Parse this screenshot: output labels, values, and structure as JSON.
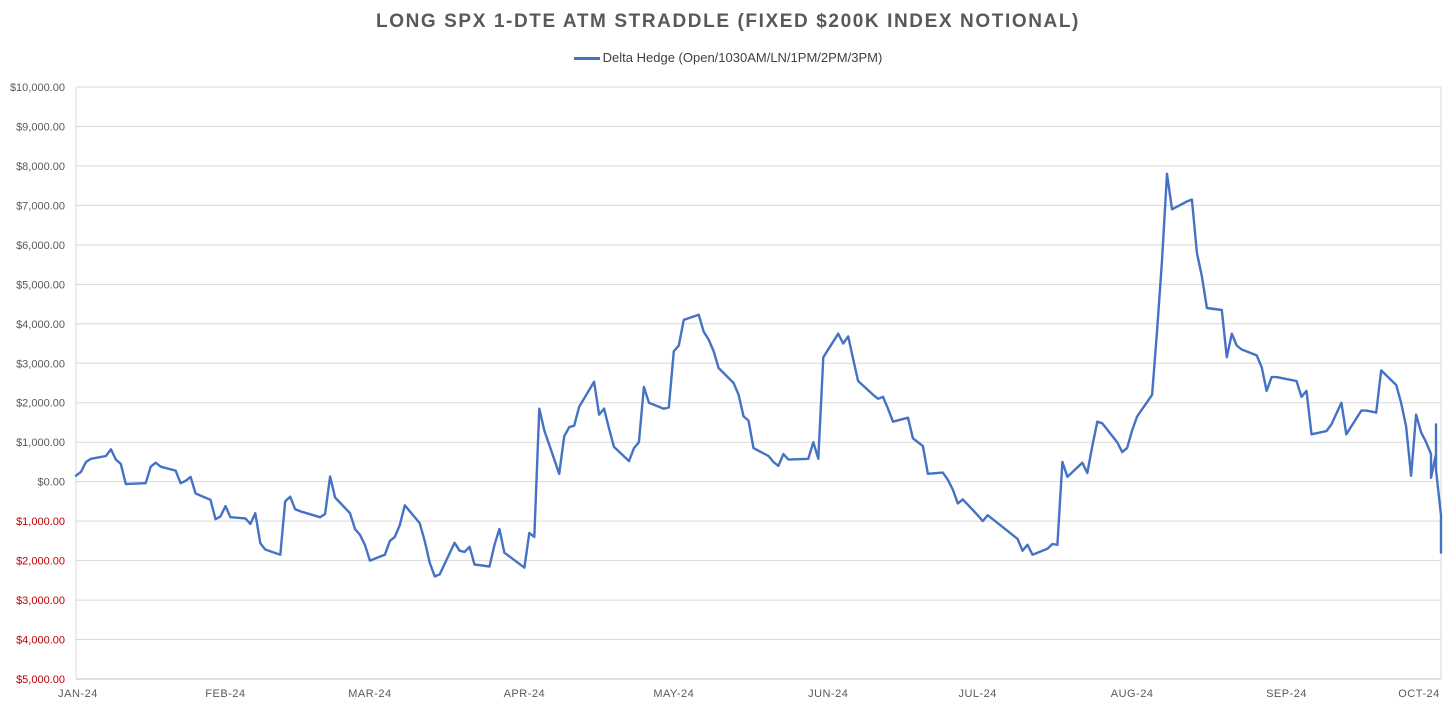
{
  "chart_data": {
    "type": "line",
    "title": "LONG SPX 1-DTE ATM STRADDLE (FIXED $200K INDEX NOTIONAL)",
    "legend_position": "top-center",
    "grid": true,
    "colors": {
      "series": "#4472C4",
      "positive_ticks": "#595959",
      "negative_ticks": "#C00000",
      "grid": "#D9D9D9"
    },
    "ylim": [
      -5000,
      10000
    ],
    "y_ticks": [
      {
        "value": 10000,
        "label": "$10,000.00"
      },
      {
        "value": 9000,
        "label": "$9,000.00"
      },
      {
        "value": 8000,
        "label": "$8,000.00"
      },
      {
        "value": 7000,
        "label": "$7,000.00"
      },
      {
        "value": 6000,
        "label": "$6,000.00"
      },
      {
        "value": 5000,
        "label": "$5,000.00"
      },
      {
        "value": 4000,
        "label": "$4,000.00"
      },
      {
        "value": 3000,
        "label": "$3,000.00"
      },
      {
        "value": 2000,
        "label": "$2,000.00"
      },
      {
        "value": 1000,
        "label": "$1,000.00"
      },
      {
        "value": 0,
        "label": "$0.00"
      },
      {
        "value": -1000,
        "label": "$1,000.00"
      },
      {
        "value": -2000,
        "label": "$2,000.00"
      },
      {
        "value": -3000,
        "label": "$3,000.00"
      },
      {
        "value": -4000,
        "label": "$4,000.00"
      },
      {
        "value": -5000,
        "label": "$5,000.00"
      }
    ],
    "xlim": [
      "2024-01-02",
      "2024-10-02"
    ],
    "x_ticks": [
      {
        "date": "2024-01-02",
        "label": "JAN-24"
      },
      {
        "date": "2024-02-01",
        "label": "FEB-24"
      },
      {
        "date": "2024-03-01",
        "label": "MAR-24"
      },
      {
        "date": "2024-04-01",
        "label": "APR-24"
      },
      {
        "date": "2024-05-01",
        "label": "MAY-24"
      },
      {
        "date": "2024-06-01",
        "label": "JUN-24"
      },
      {
        "date": "2024-07-01",
        "label": "JUL-24"
      },
      {
        "date": "2024-08-01",
        "label": "AUG-24"
      },
      {
        "date": "2024-09-01",
        "label": "SEP-24"
      },
      {
        "date": "2024-10-01",
        "label": "OCT-24"
      }
    ],
    "series": [
      {
        "name": "Delta Hedge (Open/1030AM/LN/1PM/2PM/3PM)",
        "points": [
          [
            "2024-01-02",
            150
          ],
          [
            "2024-01-03",
            250
          ],
          [
            "2024-01-04",
            500
          ],
          [
            "2024-01-05",
            580
          ],
          [
            "2024-01-08",
            650
          ],
          [
            "2024-01-09",
            820
          ],
          [
            "2024-01-10",
            560
          ],
          [
            "2024-01-11",
            450
          ],
          [
            "2024-01-12",
            -60
          ],
          [
            "2024-01-16",
            -40
          ],
          [
            "2024-01-17",
            380
          ],
          [
            "2024-01-18",
            480
          ],
          [
            "2024-01-19",
            380
          ],
          [
            "2024-01-22",
            280
          ],
          [
            "2024-01-23",
            -40
          ],
          [
            "2024-01-24",
            20
          ],
          [
            "2024-01-25",
            120
          ],
          [
            "2024-01-26",
            -300
          ],
          [
            "2024-01-29",
            -460
          ],
          [
            "2024-01-30",
            -950
          ],
          [
            "2024-01-31",
            -880
          ],
          [
            "2024-02-01",
            -620
          ],
          [
            "2024-02-02",
            -900
          ],
          [
            "2024-02-05",
            -930
          ],
          [
            "2024-02-06",
            -1070
          ],
          [
            "2024-02-07",
            -800
          ],
          [
            "2024-02-08",
            -1560
          ],
          [
            "2024-02-09",
            -1720
          ],
          [
            "2024-02-12",
            -1850
          ],
          [
            "2024-02-13",
            -500
          ],
          [
            "2024-02-14",
            -380
          ],
          [
            "2024-02-15",
            -700
          ],
          [
            "2024-02-16",
            -750
          ],
          [
            "2024-02-20",
            -900
          ],
          [
            "2024-02-21",
            -820
          ],
          [
            "2024-02-22",
            130
          ],
          [
            "2024-02-23",
            -400
          ],
          [
            "2024-02-26",
            -800
          ],
          [
            "2024-02-27",
            -1200
          ],
          [
            "2024-02-28",
            -1350
          ],
          [
            "2024-02-29",
            -1600
          ],
          [
            "2024-03-01",
            -2000
          ],
          [
            "2024-03-04",
            -1850
          ],
          [
            "2024-03-05",
            -1500
          ],
          [
            "2024-03-06",
            -1400
          ],
          [
            "2024-03-07",
            -1100
          ],
          [
            "2024-03-08",
            -600
          ],
          [
            "2024-03-11",
            -1050
          ],
          [
            "2024-03-12",
            -1500
          ],
          [
            "2024-03-13",
            -2050
          ],
          [
            "2024-03-14",
            -2400
          ],
          [
            "2024-03-15",
            -2350
          ],
          [
            "2024-03-18",
            -1550
          ],
          [
            "2024-03-19",
            -1750
          ],
          [
            "2024-03-20",
            -1780
          ],
          [
            "2024-03-21",
            -1650
          ],
          [
            "2024-03-22",
            -2100
          ],
          [
            "2024-03-25",
            -2150
          ],
          [
            "2024-03-26",
            -1600
          ],
          [
            "2024-03-27",
            -1200
          ],
          [
            "2024-03-28",
            -1800
          ],
          [
            "2024-04-01",
            -2180
          ],
          [
            "2024-04-02",
            -1300
          ],
          [
            "2024-04-03",
            -1400
          ],
          [
            "2024-04-04",
            1850
          ],
          [
            "2024-04-05",
            1300
          ],
          [
            "2024-04-08",
            200
          ],
          [
            "2024-04-09",
            1150
          ],
          [
            "2024-04-10",
            1380
          ],
          [
            "2024-04-11",
            1420
          ],
          [
            "2024-04-12",
            1900
          ],
          [
            "2024-04-15",
            2530
          ],
          [
            "2024-04-16",
            1700
          ],
          [
            "2024-04-17",
            1850
          ],
          [
            "2024-04-18",
            1350
          ],
          [
            "2024-04-19",
            880
          ],
          [
            "2024-04-22",
            520
          ],
          [
            "2024-04-23",
            850
          ],
          [
            "2024-04-24",
            1000
          ],
          [
            "2024-04-25",
            2400
          ],
          [
            "2024-04-26",
            2000
          ],
          [
            "2024-04-29",
            1850
          ],
          [
            "2024-04-30",
            1880
          ],
          [
            "2024-05-01",
            3300
          ],
          [
            "2024-05-02",
            3450
          ],
          [
            "2024-05-03",
            4100
          ],
          [
            "2024-05-06",
            4230
          ],
          [
            "2024-05-07",
            3800
          ],
          [
            "2024-05-08",
            3600
          ],
          [
            "2024-05-09",
            3300
          ],
          [
            "2024-05-10",
            2880
          ],
          [
            "2024-05-13",
            2500
          ],
          [
            "2024-05-14",
            2200
          ],
          [
            "2024-05-15",
            1650
          ],
          [
            "2024-05-16",
            1550
          ],
          [
            "2024-05-17",
            850
          ],
          [
            "2024-05-20",
            650
          ],
          [
            "2024-05-21",
            500
          ],
          [
            "2024-05-22",
            400
          ],
          [
            "2024-05-23",
            700
          ],
          [
            "2024-05-24",
            560
          ],
          [
            "2024-05-28",
            580
          ],
          [
            "2024-05-29",
            1000
          ],
          [
            "2024-05-30",
            580
          ],
          [
            "2024-05-31",
            3150
          ],
          [
            "2024-06-03",
            3750
          ],
          [
            "2024-06-04",
            3500
          ],
          [
            "2024-06-05",
            3680
          ],
          [
            "2024-06-06",
            3100
          ],
          [
            "2024-06-07",
            2550
          ],
          [
            "2024-06-10",
            2200
          ],
          [
            "2024-06-11",
            2100
          ],
          [
            "2024-06-12",
            2150
          ],
          [
            "2024-06-13",
            1850
          ],
          [
            "2024-06-14",
            1520
          ],
          [
            "2024-06-17",
            1620
          ],
          [
            "2024-06-18",
            1100
          ],
          [
            "2024-06-20",
            900
          ],
          [
            "2024-06-21",
            200
          ],
          [
            "2024-06-24",
            230
          ],
          [
            "2024-06-25",
            50
          ],
          [
            "2024-06-26",
            -200
          ],
          [
            "2024-06-27",
            -550
          ],
          [
            "2024-06-28",
            -450
          ],
          [
            "2024-07-01",
            -850
          ],
          [
            "2024-07-02",
            -1000
          ],
          [
            "2024-07-03",
            -850
          ],
          [
            "2024-07-08",
            -1350
          ],
          [
            "2024-07-09",
            -1450
          ],
          [
            "2024-07-10",
            -1750
          ],
          [
            "2024-07-11",
            -1600
          ],
          [
            "2024-07-12",
            -1850
          ],
          [
            "2024-07-15",
            -1700
          ],
          [
            "2024-07-16",
            -1580
          ],
          [
            "2024-07-17",
            -1600
          ],
          [
            "2024-07-18",
            500
          ],
          [
            "2024-07-19",
            120
          ],
          [
            "2024-07-22",
            480
          ],
          [
            "2024-07-23",
            220
          ],
          [
            "2024-07-24",
            900
          ],
          [
            "2024-07-25",
            1520
          ],
          [
            "2024-07-26",
            1480
          ],
          [
            "2024-07-29",
            1000
          ],
          [
            "2024-07-30",
            750
          ],
          [
            "2024-07-31",
            850
          ],
          [
            "2024-08-01",
            1300
          ],
          [
            "2024-08-02",
            1650
          ],
          [
            "2024-08-05",
            2200
          ],
          [
            "2024-08-06",
            3800
          ],
          [
            "2024-08-07",
            5600
          ],
          [
            "2024-08-08",
            7800
          ],
          [
            "2024-08-09",
            6900
          ],
          [
            "2024-08-12",
            7100
          ],
          [
            "2024-08-13",
            7150
          ],
          [
            "2024-08-14",
            5800
          ],
          [
            "2024-08-15",
            5200
          ],
          [
            "2024-08-16",
            4400
          ],
          [
            "2024-08-19",
            4350
          ],
          [
            "2024-08-20",
            3150
          ],
          [
            "2024-08-21",
            3750
          ],
          [
            "2024-08-22",
            3450
          ],
          [
            "2024-08-23",
            3350
          ],
          [
            "2024-08-26",
            3200
          ],
          [
            "2024-08-27",
            2900
          ],
          [
            "2024-08-28",
            2300
          ],
          [
            "2024-08-29",
            2650
          ],
          [
            "2024-08-30",
            2650
          ],
          [
            "2024-09-03",
            2550
          ],
          [
            "2024-09-04",
            2150
          ],
          [
            "2024-09-05",
            2300
          ],
          [
            "2024-09-06",
            1200
          ],
          [
            "2024-09-09",
            1280
          ],
          [
            "2024-09-10",
            1450
          ],
          [
            "2024-09-12",
            2000
          ],
          [
            "2024-09-13",
            1200
          ],
          [
            "2024-09-16",
            1800
          ],
          [
            "2024-09-17",
            1800
          ],
          [
            "2024-09-19",
            1750
          ],
          [
            "2024-09-20",
            2820
          ],
          [
            "2024-09-23",
            2450
          ],
          [
            "2024-09-24",
            2000
          ],
          [
            "2024-09-25",
            1400
          ],
          [
            "2024-09-26",
            150
          ],
          [
            "2024-09-27",
            1700
          ],
          [
            "2024-09-28",
            1250
          ],
          [
            "2024-09-29",
            1000
          ],
          [
            "2024-09-30",
            700
          ],
          [
            "2024-09-30",
            150
          ],
          [
            "2024-09-30",
            600
          ],
          [
            "2024-09-30",
            100
          ],
          [
            "2024-10-01",
            700
          ],
          [
            "2024-10-01",
            1450
          ],
          [
            "2024-10-01",
            300
          ],
          [
            "2024-10-02",
            -850
          ],
          [
            "2024-10-02",
            -1800
          ]
        ]
      }
    ]
  }
}
